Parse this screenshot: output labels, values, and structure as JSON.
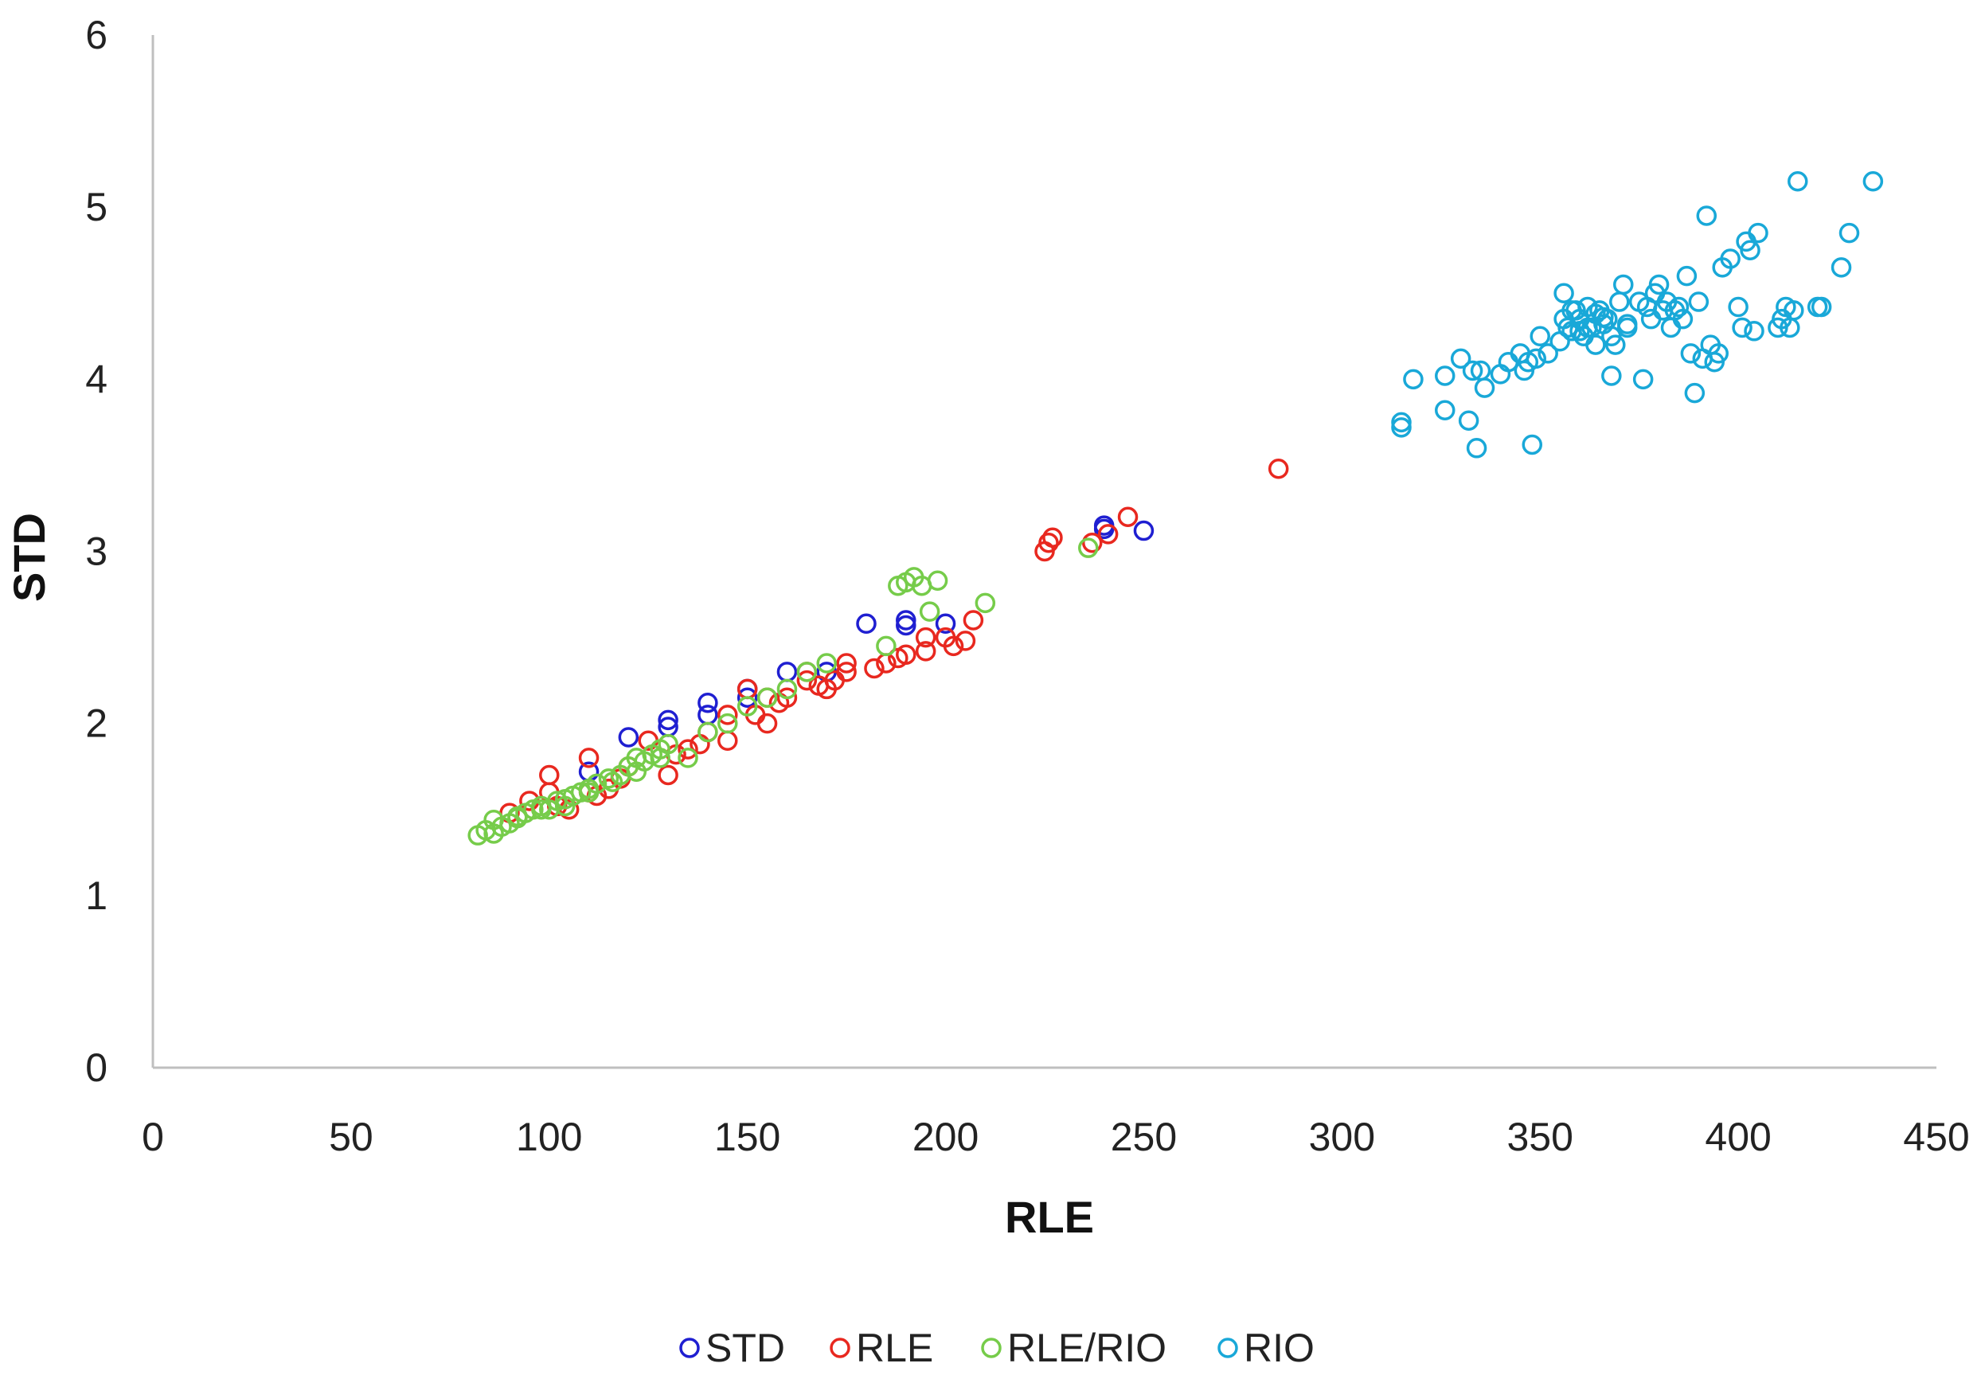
{
  "chart_data": {
    "type": "scatter",
    "title": "",
    "xlabel": "RLE",
    "ylabel": "STD",
    "xlim": [
      0,
      450
    ],
    "ylim": [
      0,
      6
    ],
    "xticks": [
      0,
      50,
      100,
      150,
      200,
      250,
      300,
      350,
      400,
      450
    ],
    "yticks": [
      0,
      1,
      2,
      3,
      4,
      5,
      6
    ],
    "grid": false,
    "legend_position": "bottom",
    "series": [
      {
        "name": "STD",
        "color": "#1f1fd1",
        "x": [
          110,
          120,
          130,
          140,
          140,
          150,
          160,
          170,
          180,
          190,
          190,
          200,
          240,
          240,
          250,
          150,
          130
        ],
        "y": [
          1.72,
          1.92,
          2.02,
          2.12,
          2.05,
          2.15,
          2.3,
          2.3,
          2.58,
          2.6,
          2.57,
          2.58,
          3.13,
          3.15,
          3.12,
          2.2,
          1.98
        ]
      },
      {
        "name": "RLE",
        "color": "#e8281f",
        "x": [
          90,
          95,
          100,
          105,
          110,
          115,
          120,
          130,
          135,
          140,
          145,
          150,
          155,
          160,
          165,
          170,
          175,
          185,
          190,
          195,
          200,
          205,
          207,
          225,
          226,
          237,
          241,
          246,
          284,
          100,
          110,
          125,
          145,
          155,
          165,
          175,
          195
        ],
        "y": [
          1.48,
          1.55,
          1.6,
          1.5,
          1.6,
          1.62,
          1.75,
          1.7,
          1.85,
          1.95,
          1.9,
          2.2,
          2.0,
          2.15,
          2.25,
          2.2,
          2.3,
          2.35,
          2.4,
          2.42,
          2.5,
          2.48,
          2.6,
          3.0,
          3.05,
          3.05,
          3.1,
          3.2,
          3.48,
          1.7,
          1.8,
          1.9,
          2.05,
          2.15,
          2.3,
          2.35,
          2.5
        ],
        "x2": [
          102,
          112,
          118,
          132,
          138,
          152,
          158,
          168,
          172,
          182,
          188,
          202,
          227
        ],
        "y2": [
          1.52,
          1.58,
          1.68,
          1.82,
          1.88,
          2.05,
          2.12,
          2.22,
          2.25,
          2.32,
          2.38,
          2.45,
          3.08
        ]
      },
      {
        "name": "RLE/RIO",
        "color": "#76cc4a",
        "x": [
          82,
          84,
          86,
          88,
          90,
          92,
          94,
          96,
          98,
          100,
          102,
          104,
          106,
          108,
          110,
          112,
          115,
          118,
          120,
          122,
          124,
          126,
          128,
          130,
          135,
          140,
          145,
          150,
          155,
          160,
          165,
          170,
          185,
          188,
          190,
          192,
          194,
          196,
          198,
          210,
          236,
          86,
          92,
          98,
          104,
          110,
          116,
          122,
          128
        ],
        "y": [
          1.35,
          1.38,
          1.36,
          1.4,
          1.42,
          1.45,
          1.48,
          1.5,
          1.52,
          1.5,
          1.55,
          1.56,
          1.58,
          1.6,
          1.62,
          1.65,
          1.68,
          1.7,
          1.75,
          1.8,
          1.78,
          1.82,
          1.85,
          1.88,
          1.8,
          1.95,
          2.0,
          2.1,
          2.15,
          2.2,
          2.3,
          2.35,
          2.45,
          2.8,
          2.82,
          2.85,
          2.8,
          2.65,
          2.83,
          2.7,
          3.02,
          1.44,
          1.46,
          1.5,
          1.52,
          1.6,
          1.66,
          1.72,
          1.8
        ]
      },
      {
        "name": "RIO",
        "color": "#19a8d8",
        "x": [
          315,
          315,
          318,
          326,
          326,
          330,
          332,
          333,
          334,
          335,
          336,
          340,
          342,
          345,
          346,
          347,
          348,
          349,
          350,
          352,
          355,
          356,
          357,
          358,
          359,
          360,
          361,
          362,
          363,
          364,
          365,
          366,
          367,
          368,
          369,
          370,
          371,
          372,
          375,
          376,
          377,
          378,
          379,
          380,
          381,
          382,
          383,
          384,
          385,
          386,
          387,
          388,
          389,
          390,
          391,
          392,
          393,
          394,
          395,
          396,
          398,
          400,
          401,
          402,
          403,
          404,
          405,
          410,
          411,
          412,
          413,
          414,
          415,
          420,
          421,
          426,
          428,
          434,
          356,
          360,
          364,
          368,
          372,
          358,
          362,
          366
        ],
        "y": [
          3.72,
          3.75,
          4.0,
          3.82,
          4.02,
          4.12,
          3.76,
          4.05,
          3.6,
          4.05,
          3.95,
          4.03,
          4.1,
          4.15,
          4.05,
          4.1,
          3.62,
          4.12,
          4.25,
          4.15,
          4.22,
          4.5,
          4.3,
          4.28,
          4.4,
          4.35,
          4.25,
          4.42,
          4.3,
          4.2,
          4.4,
          4.32,
          4.35,
          4.02,
          4.2,
          4.45,
          4.55,
          4.3,
          4.45,
          4.0,
          4.42,
          4.35,
          4.5,
          4.55,
          4.4,
          4.45,
          4.3,
          4.4,
          4.42,
          4.35,
          4.6,
          4.15,
          3.92,
          4.45,
          4.12,
          4.95,
          4.2,
          4.1,
          4.15,
          4.65,
          4.7,
          4.42,
          4.3,
          4.8,
          4.75,
          4.28,
          4.85,
          4.3,
          4.35,
          4.42,
          4.3,
          4.4,
          5.15,
          4.42,
          4.42,
          4.65,
          4.85,
          5.15,
          4.35,
          4.28,
          4.38,
          4.25,
          4.32,
          4.4,
          4.3,
          4.36
        ]
      }
    ]
  }
}
